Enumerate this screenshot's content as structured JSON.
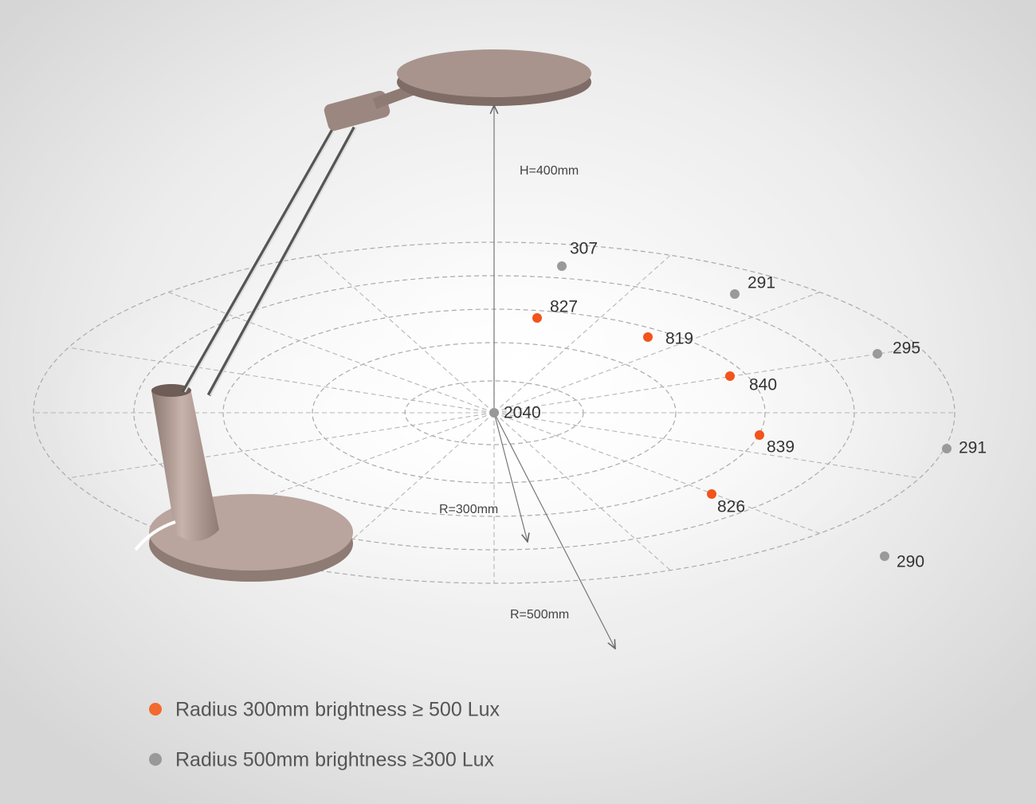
{
  "annotations": {
    "height": "H=400mm",
    "radius_inner": "R=300mm",
    "radius_outer": "R=500mm"
  },
  "center": {
    "value": 2040
  },
  "inner_points": [
    {
      "value": 827
    },
    {
      "value": 819
    },
    {
      "value": 840
    },
    {
      "value": 839
    },
    {
      "value": 826
    }
  ],
  "outer_points": [
    {
      "value": 307
    },
    {
      "value": 291
    },
    {
      "value": 295
    },
    {
      "value": 291
    },
    {
      "value": 290
    }
  ],
  "legend": [
    {
      "label": "Radius 300mm brightness ≥ 500 Lux"
    },
    {
      "label": "Radius 500mm brightness ≥300 Lux"
    }
  ]
}
